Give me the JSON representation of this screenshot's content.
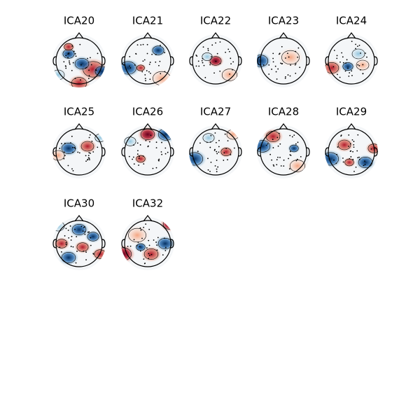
{
  "panels": [
    {
      "title": "ICA20"
    },
    {
      "title": "ICA21"
    },
    {
      "title": "ICA22"
    },
    {
      "title": "ICA23"
    },
    {
      "title": "ICA24"
    },
    {
      "title": "ICA25"
    },
    {
      "title": "ICA26"
    },
    {
      "title": "ICA27"
    },
    {
      "title": "ICA28"
    },
    {
      "title": "ICA29"
    },
    {
      "title": "ICA30"
    },
    {
      "title": "ICA32"
    }
  ]
}
